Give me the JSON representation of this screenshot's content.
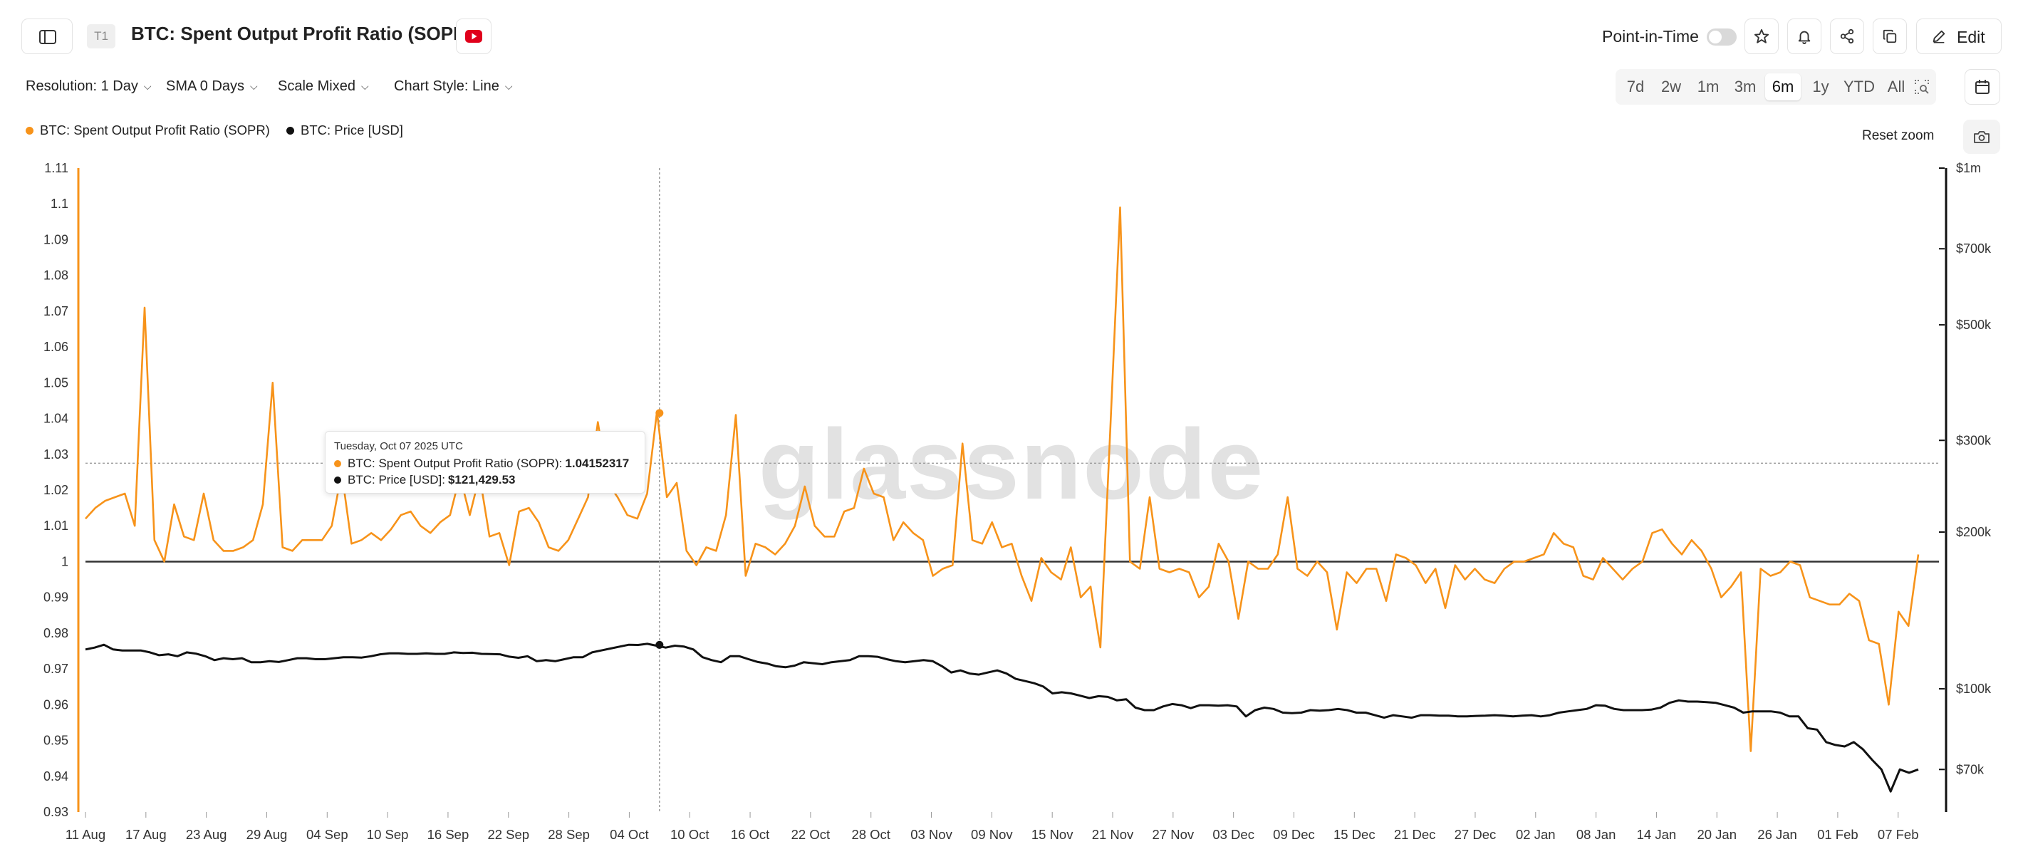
{
  "header": {
    "tier_badge": "T1",
    "title": "BTC: Spent Output Profit Ratio (SOPR)",
    "point_in_time_label": "Point-in-Time",
    "edit_label": "Edit"
  },
  "controls": {
    "resolution": "Resolution: 1 Day",
    "sma": "SMA 0 Days",
    "scale": "Scale Mixed",
    "chart_style": "Chart Style: Line"
  },
  "ranges": [
    "7d",
    "2w",
    "1m",
    "3m",
    "6m",
    "1y",
    "YTD",
    "All"
  ],
  "active_range": "6m",
  "legend": [
    {
      "label": "BTC: Spent Output Profit Ratio (SOPR)",
      "color": "#f7931a"
    },
    {
      "label": "BTC: Price [USD]",
      "color": "#111111"
    }
  ],
  "reset_zoom": "Reset zoom",
  "watermark": "glassnode",
  "tooltip": {
    "date": "Tuesday, Oct 07 2025 UTC",
    "sopr_label": "BTC: Spent Output Profit Ratio (SOPR):",
    "sopr_value": "1.04152317",
    "price_label": "BTC: Price [USD]:",
    "price_value": "$121,429.53"
  },
  "chart_data": {
    "type": "line",
    "x_ticks": [
      "11 Aug",
      "17 Aug",
      "23 Aug",
      "29 Aug",
      "04 Sep",
      "10 Sep",
      "16 Sep",
      "22 Sep",
      "28 Sep",
      "04 Oct",
      "10 Oct",
      "16 Oct",
      "22 Oct",
      "28 Oct",
      "03 Nov",
      "09 Nov",
      "15 Nov",
      "21 Nov",
      "27 Nov",
      "03 Dec",
      "09 Dec",
      "15 Dec",
      "21 Dec",
      "27 Dec",
      "02 Jan",
      "08 Jan",
      "14 Jan",
      "20 Jan",
      "26 Jan",
      "01 Feb",
      "07 Feb"
    ],
    "y_left_ticks": [
      "1.11",
      "1.1",
      "1.09",
      "1.08",
      "1.07",
      "1.06",
      "1.05",
      "1.04",
      "1.03",
      "1.02",
      "1.01",
      "1",
      "0.99",
      "0.98",
      "0.97",
      "0.96",
      "0.95",
      "0.94",
      "0.93"
    ],
    "y_left_range": [
      0.93,
      1.11
    ],
    "y_right_ticks": [
      {
        "label": "$1m",
        "value": 1000000
      },
      {
        "label": "$700k",
        "value": 700000
      },
      {
        "label": "$500k",
        "value": 500000
      },
      {
        "label": "$300k",
        "value": 300000
      },
      {
        "label": "$200k",
        "value": 200000
      },
      {
        "label": "$100k",
        "value": 100000
      },
      {
        "label": "$70k",
        "value": 70000
      }
    ],
    "y_right_scale": "log",
    "reference_line": 1,
    "start_date": "2025-08-11",
    "series": [
      {
        "name": "BTC: Spent Output Profit Ratio (SOPR)",
        "color": "#f7931a",
        "axis": "left",
        "values": [
          1.012,
          1.015,
          1.017,
          1.018,
          1.019,
          1.01,
          1.071,
          1.006,
          1.0,
          1.016,
          1.007,
          1.006,
          1.019,
          1.006,
          1.003,
          1.003,
          1.004,
          1.006,
          1.016,
          1.05,
          1.004,
          1.003,
          1.006,
          1.006,
          1.006,
          1.01,
          1.025,
          1.005,
          1.006,
          1.008,
          1.006,
          1.009,
          1.013,
          1.014,
          1.01,
          1.008,
          1.011,
          1.013,
          1.024,
          1.013,
          1.024,
          1.007,
          1.008,
          0.999,
          1.014,
          1.015,
          1.011,
          1.004,
          1.003,
          1.006,
          1.012,
          1.018,
          1.039,
          1.022,
          1.018,
          1.013,
          1.012,
          1.019,
          1.042,
          1.018,
          1.022,
          1.003,
          0.999,
          1.004,
          1.003,
          1.013,
          1.041,
          0.996,
          1.005,
          1.004,
          1.002,
          1.005,
          1.01,
          1.021,
          1.01,
          1.007,
          1.007,
          1.014,
          1.015,
          1.026,
          1.019,
          1.018,
          1.006,
          1.011,
          1.008,
          1.006,
          0.996,
          0.998,
          0.999,
          1.033,
          1.006,
          1.005,
          1.011,
          1.004,
          1.005,
          0.996,
          0.989,
          1.001,
          0.997,
          0.995,
          1.004,
          0.99,
          0.993,
          0.976,
          1.037,
          1.099,
          1.0,
          0.998,
          1.018,
          0.998,
          0.997,
          0.998,
          0.997,
          0.99,
          0.993,
          1.005,
          1.0,
          0.984,
          1.0,
          0.998,
          0.998,
          1.002,
          1.018,
          0.998,
          0.996,
          1.0,
          0.997,
          0.981,
          0.997,
          0.994,
          0.998,
          0.998,
          0.989,
          1.002,
          1.001,
          0.999,
          0.994,
          0.998,
          0.987,
          0.999,
          0.995,
          0.998,
          0.995,
          0.994,
          0.998,
          1.0,
          1.0,
          1.001,
          1.002,
          1.008,
          1.005,
          1.004,
          0.996,
          0.995,
          1.001,
          0.998,
          0.995,
          0.998,
          1.0,
          1.008,
          1.009,
          1.005,
          1.002,
          1.006,
          1.003,
          0.998,
          0.99,
          0.993,
          0.997,
          0.947,
          0.998,
          0.996,
          0.997,
          1.0,
          0.999,
          0.99,
          0.989,
          0.988,
          0.988,
          0.991,
          0.989,
          0.978,
          0.977,
          0.96,
          0.986,
          0.982,
          1.002
        ]
      },
      {
        "name": "BTC: Price [USD]",
        "color": "#111111",
        "axis": "right",
        "values": [
          119000,
          120000,
          121500,
          119000,
          118500,
          118500,
          118500,
          117500,
          116000,
          116500,
          115500,
          117500,
          116800,
          115500,
          113500,
          114500,
          114000,
          114500,
          112500,
          112500,
          113000,
          112600,
          113500,
          114500,
          114500,
          114000,
          114000,
          114500,
          115000,
          115000,
          114800,
          115500,
          116500,
          117000,
          117000,
          116700,
          116700,
          117000,
          116700,
          116700,
          117500,
          117200,
          117300,
          116700,
          116600,
          116500,
          115300,
          114700,
          115500,
          113000,
          113500,
          113000,
          114000,
          115000,
          115000,
          117500,
          118500,
          119500,
          120500,
          121500,
          121400,
          122000,
          121000,
          120000,
          121000,
          120500,
          119000,
          115000,
          113500,
          112500,
          115500,
          115500,
          114000,
          112600,
          111800,
          110500,
          110000,
          110800,
          112500,
          112000,
          111500,
          112500,
          113000,
          113500,
          115500,
          115500,
          115200,
          114000,
          113000,
          112500,
          113000,
          113500,
          113000,
          110500,
          107500,
          108500,
          107000,
          106500,
          107500,
          108500,
          107000,
          104500,
          103500,
          102500,
          101000,
          98000,
          98500,
          98000,
          97000,
          96000,
          96800,
          96500,
          95000,
          95500,
          92000,
          91000,
          91000,
          92500,
          93500,
          93000,
          91800,
          93000,
          93000,
          92800,
          93000,
          92500,
          88500,
          91000,
          92000,
          91500,
          90000,
          89800,
          90000,
          91000,
          90800,
          91000,
          91500,
          91000,
          90000,
          90000,
          89000,
          88000,
          89000,
          88500,
          88000,
          89000,
          89000,
          88800,
          88800,
          88500,
          88500,
          88700,
          88800,
          89000,
          88800,
          88500,
          88800,
          89000,
          88500,
          89000,
          90000,
          90500,
          91000,
          91500,
          93000,
          92800,
          91500,
          91000,
          91000,
          91000,
          91200,
          92000,
          94000,
          95000,
          94500,
          94500,
          94300,
          94000,
          93000,
          92000,
          90000,
          90500,
          90500,
          90500,
          90000,
          88500,
          88500,
          84000,
          83500,
          79000,
          78000,
          77500,
          79000,
          76500,
          73000,
          70000,
          63500,
          70000,
          69000,
          70000
        ]
      }
    ],
    "crosshair": {
      "date": "2025-10-07",
      "sopr": 1.04152317,
      "price": 121429.53,
      "horizontal_value": 1.0275
    }
  }
}
